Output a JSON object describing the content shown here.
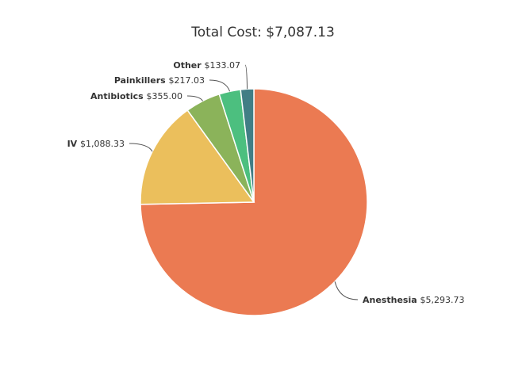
{
  "chart_data": {
    "type": "pie",
    "title": "Total Cost: $7,087.13",
    "total": 7087.13,
    "start_angle_deg": 0,
    "direction": "clockwise",
    "slices": [
      {
        "label": "Anesthesia",
        "value": 5293.73,
        "value_label": "$5,293.73",
        "color": "#eb7a52"
      },
      {
        "label": "IV",
        "value": 1088.33,
        "value_label": "$1,088.33",
        "color": "#ebbf5c"
      },
      {
        "label": "Antibiotics",
        "value": 355.0,
        "value_label": "$355.00",
        "color": "#8bb35a"
      },
      {
        "label": "Painkillers",
        "value": 217.03,
        "value_label": "$217.03",
        "color": "#4cbf7f"
      },
      {
        "label": "Other",
        "value": 133.07,
        "value_label": "$133.07",
        "color": "#417e85"
      }
    ]
  }
}
